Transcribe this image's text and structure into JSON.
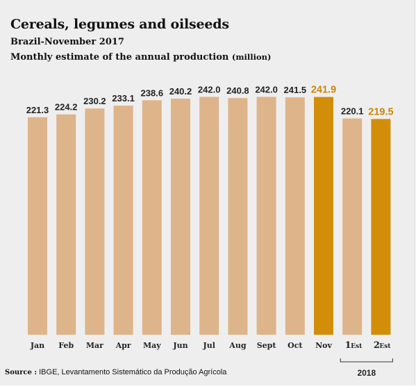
{
  "chart_data": {
    "type": "bar",
    "title": "Cereals, legumes and oilseeds",
    "subtitle": "Brazil-November 2017",
    "description": "Monthly estimate of the annual production",
    "unit": "(million)",
    "categories": [
      "Jan",
      "Feb",
      "Mar",
      "Apr",
      "May",
      "Jun",
      "Jul",
      "Aug",
      "Sept",
      "Oct",
      "Nov",
      "1",
      "2"
    ],
    "category_suffixes": [
      "",
      "",
      "",
      "",
      "",
      "",
      "",
      "",
      "",
      "",
      "",
      "Est",
      "Est"
    ],
    "values": [
      221.3,
      224.2,
      230.2,
      233.1,
      238.6,
      240.2,
      242.0,
      240.8,
      242.0,
      241.5,
      241.9,
      220.1,
      219.5
    ],
    "value_labels": [
      "221.3",
      "224.2",
      "230.2",
      "233.1",
      "238.6",
      "240.2",
      "242.0",
      "240.8",
      "242.0",
      "241.5",
      "241.9",
      "220.1",
      "219.5"
    ],
    "highlight_indices": [
      10,
      11
    ],
    "year_group": {
      "label": "2018",
      "from_index": 11,
      "to_index": 12
    },
    "ylim": [
      0,
      242
    ],
    "grid": false,
    "colors": {
      "bar": "#deb48a",
      "highlight": "#d28e09",
      "highlight_text": "#c8860a",
      "label": "#222222"
    }
  },
  "source": {
    "label": "Source :",
    "text": "IBGE, Levantamento Sistemático da Produção Agrícola"
  }
}
